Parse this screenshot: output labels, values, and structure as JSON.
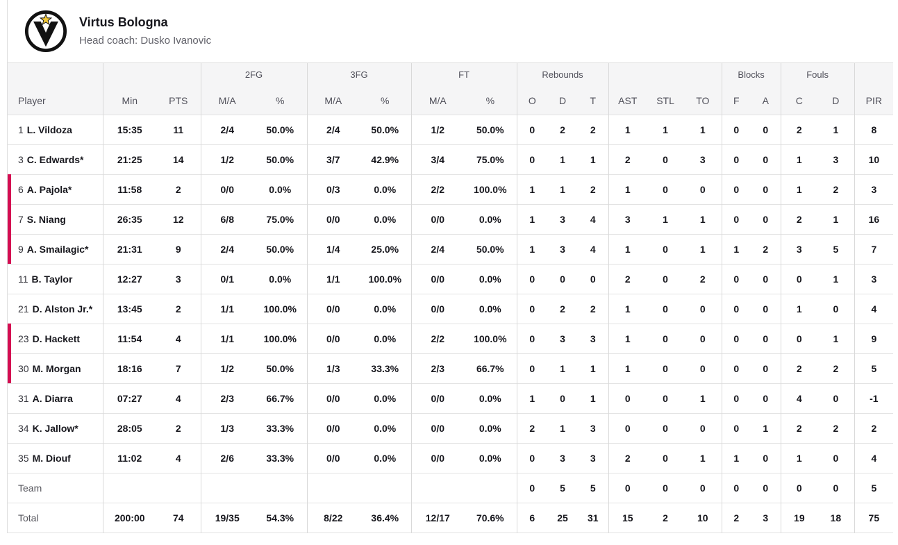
{
  "colors": {
    "accent": "#d40d52",
    "header_bg": "#f5f5f6",
    "star_yellow": "#f3c937"
  },
  "header": {
    "team_name": "Virtus Bologna",
    "coach": "Head coach: Dusko Ivanovic",
    "logo_icon": "virtus-bologna-crest"
  },
  "table": {
    "group_headers": {
      "fg2": "2FG",
      "fg3": "3FG",
      "ft": "FT",
      "rebounds": "Rebounds",
      "blocks": "Blocks",
      "fouls": "Fouls"
    },
    "column_headers": {
      "player": "Player",
      "min": "Min",
      "pts": "PTS",
      "ma": "M/A",
      "pct": "%",
      "reb_o": "O",
      "reb_d": "D",
      "reb_t": "T",
      "ast": "AST",
      "stl": "STL",
      "to": "TO",
      "blk_f": "F",
      "blk_a": "A",
      "foul_c": "C",
      "foul_d": "D",
      "pir": "PIR"
    },
    "stat_fields": [
      "min",
      "pts",
      "2fg-ma",
      "2fg-pct",
      "3fg-ma",
      "3fg-pct",
      "ft-ma",
      "ft-pct",
      "reb-o",
      "reb-d",
      "reb-t",
      "ast",
      "stl",
      "to",
      "blk-f",
      "blk-a",
      "foul-c",
      "foul-d",
      "pir"
    ],
    "players": [
      {
        "num": "1",
        "name": "L. Vildoza",
        "on_court": false,
        "stats": [
          "15:35",
          "11",
          "2/4",
          "50.0%",
          "2/4",
          "50.0%",
          "1/2",
          "50.0%",
          "0",
          "2",
          "2",
          "1",
          "1",
          "1",
          "0",
          "0",
          "2",
          "1",
          "8"
        ]
      },
      {
        "num": "3",
        "name": "C. Edwards*",
        "on_court": false,
        "stats": [
          "21:25",
          "14",
          "1/2",
          "50.0%",
          "3/7",
          "42.9%",
          "3/4",
          "75.0%",
          "0",
          "1",
          "1",
          "2",
          "0",
          "3",
          "0",
          "0",
          "1",
          "3",
          "10"
        ]
      },
      {
        "num": "6",
        "name": "A. Pajola*",
        "on_court": true,
        "stats": [
          "11:58",
          "2",
          "0/0",
          "0.0%",
          "0/3",
          "0.0%",
          "2/2",
          "100.0%",
          "1",
          "1",
          "2",
          "1",
          "0",
          "0",
          "0",
          "0",
          "1",
          "2",
          "3"
        ]
      },
      {
        "num": "7",
        "name": "S. Niang",
        "on_court": true,
        "stats": [
          "26:35",
          "12",
          "6/8",
          "75.0%",
          "0/0",
          "0.0%",
          "0/0",
          "0.0%",
          "1",
          "3",
          "4",
          "3",
          "1",
          "1",
          "0",
          "0",
          "2",
          "1",
          "16"
        ]
      },
      {
        "num": "9",
        "name": "A. Smailagic*",
        "on_court": true,
        "stats": [
          "21:31",
          "9",
          "2/4",
          "50.0%",
          "1/4",
          "25.0%",
          "2/4",
          "50.0%",
          "1",
          "3",
          "4",
          "1",
          "0",
          "1",
          "1",
          "2",
          "3",
          "5",
          "7"
        ]
      },
      {
        "num": "11",
        "name": "B. Taylor",
        "on_court": false,
        "stats": [
          "12:27",
          "3",
          "0/1",
          "0.0%",
          "1/1",
          "100.0%",
          "0/0",
          "0.0%",
          "0",
          "0",
          "0",
          "2",
          "0",
          "2",
          "0",
          "0",
          "0",
          "1",
          "3"
        ]
      },
      {
        "num": "21",
        "name": "D. Alston Jr.*",
        "on_court": false,
        "stats": [
          "13:45",
          "2",
          "1/1",
          "100.0%",
          "0/0",
          "0.0%",
          "0/0",
          "0.0%",
          "0",
          "2",
          "2",
          "1",
          "0",
          "0",
          "0",
          "0",
          "1",
          "0",
          "4"
        ]
      },
      {
        "num": "23",
        "name": "D. Hackett",
        "on_court": true,
        "stats": [
          "11:54",
          "4",
          "1/1",
          "100.0%",
          "0/0",
          "0.0%",
          "2/2",
          "100.0%",
          "0",
          "3",
          "3",
          "1",
          "0",
          "0",
          "0",
          "0",
          "0",
          "1",
          "9"
        ]
      },
      {
        "num": "30",
        "name": "M. Morgan",
        "on_court": true,
        "stats": [
          "18:16",
          "7",
          "1/2",
          "50.0%",
          "1/3",
          "33.3%",
          "2/3",
          "66.7%",
          "0",
          "1",
          "1",
          "1",
          "0",
          "0",
          "0",
          "0",
          "2",
          "2",
          "5"
        ]
      },
      {
        "num": "31",
        "name": "A. Diarra",
        "on_court": false,
        "stats": [
          "07:27",
          "4",
          "2/3",
          "66.7%",
          "0/0",
          "0.0%",
          "0/0",
          "0.0%",
          "1",
          "0",
          "1",
          "0",
          "0",
          "1",
          "0",
          "0",
          "4",
          "0",
          "-1"
        ]
      },
      {
        "num": "34",
        "name": "K. Jallow*",
        "on_court": false,
        "stats": [
          "28:05",
          "2",
          "1/3",
          "33.3%",
          "0/0",
          "0.0%",
          "0/0",
          "0.0%",
          "2",
          "1",
          "3",
          "0",
          "0",
          "0",
          "0",
          "1",
          "2",
          "2",
          "2"
        ]
      },
      {
        "num": "35",
        "name": "M. Diouf",
        "on_court": false,
        "stats": [
          "11:02",
          "4",
          "2/6",
          "33.3%",
          "0/0",
          "0.0%",
          "0/0",
          "0.0%",
          "0",
          "3",
          "3",
          "2",
          "0",
          "1",
          "1",
          "0",
          "1",
          "0",
          "4"
        ]
      }
    ],
    "team_row": {
      "label": "Team",
      "stats": [
        "",
        "",
        "",
        "",
        "",
        "",
        "",
        "",
        "0",
        "5",
        "5",
        "0",
        "0",
        "0",
        "0",
        "0",
        "0",
        "0",
        "5"
      ]
    },
    "total_row": {
      "label": "Total",
      "stats": [
        "200:00",
        "74",
        "19/35",
        "54.3%",
        "8/22",
        "36.4%",
        "12/17",
        "70.6%",
        "6",
        "25",
        "31",
        "15",
        "2",
        "10",
        "2",
        "3",
        "19",
        "18",
        "75"
      ]
    }
  }
}
